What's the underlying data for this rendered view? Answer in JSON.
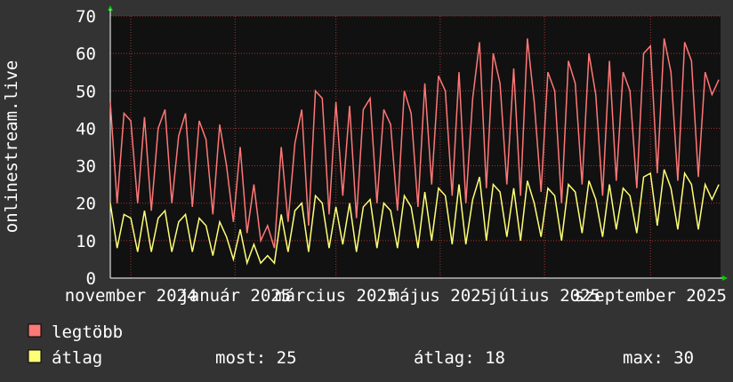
{
  "chart_data": {
    "type": "line",
    "y_label": "onlinestream.live",
    "x": [
      0,
      4,
      8,
      12,
      16,
      20,
      24,
      28,
      32,
      36,
      40,
      44,
      48,
      52,
      56,
      60,
      64,
      68,
      72,
      76,
      80,
      84,
      88,
      92,
      96,
      100,
      104,
      108,
      112,
      116,
      120,
      124,
      128,
      132,
      136,
      140,
      144,
      148,
      152,
      156,
      160,
      164,
      168,
      172,
      176,
      180,
      184,
      188,
      192,
      196,
      200,
      204,
      208,
      212,
      216,
      220,
      224,
      228,
      232,
      236,
      240,
      244,
      248,
      252,
      256,
      260,
      264,
      268,
      272,
      276,
      280,
      284,
      288,
      292,
      296,
      300,
      304,
      308,
      312,
      316,
      320,
      324,
      328,
      332,
      336,
      340,
      344,
      348,
      352,
      356
    ],
    "xlim": [
      0,
      357
    ],
    "xticks": [
      {
        "value": 12,
        "label": "november 2024"
      },
      {
        "value": 73,
        "label": "január 2025"
      },
      {
        "value": 132,
        "label": "március 2025"
      },
      {
        "value": 193,
        "label": "május 2025"
      },
      {
        "value": 254,
        "label": "július 2025"
      },
      {
        "value": 316,
        "label": "szeptember 2025"
      }
    ],
    "ylim": [
      0,
      70
    ],
    "yticks": [
      0,
      10,
      20,
      30,
      40,
      50,
      60,
      70
    ],
    "grid": true,
    "series": [
      {
        "name": "legtöbb",
        "color": "#ff7777",
        "values": [
          47,
          20,
          44,
          42,
          20,
          43,
          18,
          40,
          45,
          20,
          38,
          44,
          19,
          42,
          37,
          17,
          41,
          30,
          15,
          35,
          12,
          25,
          10,
          14,
          8,
          35,
          15,
          36,
          45,
          14,
          50,
          48,
          17,
          47,
          22,
          46,
          16,
          45,
          48,
          20,
          45,
          41,
          18,
          50,
          44,
          19,
          52,
          25,
          54,
          50,
          22,
          55,
          20,
          48,
          63,
          24,
          60,
          52,
          25,
          56,
          22,
          64,
          47,
          23,
          55,
          50,
          20,
          58,
          52,
          25,
          60,
          49,
          22,
          58,
          26,
          55,
          50,
          24,
          60,
          62,
          28,
          64,
          55,
          26,
          63,
          58,
          27,
          55,
          49,
          53
        ]
      },
      {
        "name": "átlag",
        "color": "#ffff77",
        "values": [
          20,
          8,
          17,
          16,
          7,
          18,
          7,
          16,
          18,
          7,
          15,
          17,
          7,
          16,
          14,
          6,
          15,
          11,
          5,
          13,
          4,
          9,
          4,
          6,
          4,
          17,
          7,
          18,
          20,
          7,
          22,
          20,
          8,
          19,
          9,
          20,
          7,
          19,
          21,
          8,
          20,
          18,
          8,
          22,
          19,
          8,
          23,
          10,
          24,
          22,
          9,
          25,
          9,
          21,
          27,
          10,
          25,
          23,
          11,
          24,
          10,
          26,
          20,
          11,
          24,
          22,
          10,
          25,
          23,
          12,
          26,
          21,
          11,
          25,
          13,
          24,
          22,
          12,
          27,
          28,
          14,
          29,
          24,
          13,
          28,
          25,
          13,
          25,
          21,
          25
        ]
      }
    ],
    "stats": [
      {
        "label": "most:",
        "value": 25
      },
      {
        "label": "átlag:",
        "value": 18
      },
      {
        "label": "max:",
        "value": 30
      }
    ]
  }
}
